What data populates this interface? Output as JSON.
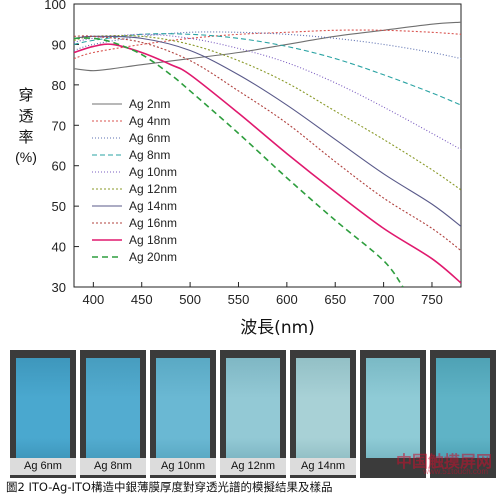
{
  "chart_data": {
    "type": "line",
    "ylabel_chars": [
      "穿",
      "透",
      "率"
    ],
    "ylabel_unit": "(%)",
    "xlabel": "波長(nm)",
    "xlim": [
      380,
      780
    ],
    "ylim": [
      30,
      100
    ],
    "xticks": [
      400,
      450,
      500,
      550,
      600,
      650,
      700,
      750
    ],
    "yticks": [
      30,
      40,
      50,
      60,
      70,
      80,
      90,
      100
    ],
    "legend_position": "center-left",
    "series": [
      {
        "name": "Ag 2nm",
        "color": "#707070",
        "dash": "",
        "width": 1.1,
        "x": [
          380,
          400,
          420,
          450,
          500,
          550,
          600,
          650,
          700,
          750,
          780
        ],
        "y": [
          84,
          83.5,
          84,
          85,
          86.5,
          88,
          90,
          92,
          93.5,
          95,
          95.5
        ]
      },
      {
        "name": "Ag 4nm",
        "color": "#d9534f",
        "dash": "2,2",
        "width": 1.1,
        "x": [
          380,
          400,
          450,
          500,
          550,
          600,
          650,
          700,
          750,
          780
        ],
        "y": [
          86.5,
          88,
          90,
          91.5,
          92.5,
          93,
          93.5,
          93.5,
          93,
          92.5
        ]
      },
      {
        "name": "Ag 6nm",
        "color": "#5b6fb0",
        "dash": "1,2",
        "width": 1.1,
        "x": [
          380,
          400,
          450,
          500,
          550,
          600,
          650,
          700,
          750,
          780
        ],
        "y": [
          88.5,
          90,
          92,
          93,
          93,
          92.5,
          91.5,
          90,
          88,
          86.5
        ]
      },
      {
        "name": "Ag 8nm",
        "color": "#2aa3a3",
        "dash": "5,3",
        "width": 1.1,
        "x": [
          380,
          400,
          450,
          500,
          550,
          600,
          650,
          700,
          750,
          780
        ],
        "y": [
          90,
          91,
          92.5,
          92.5,
          91.5,
          89.5,
          86.5,
          82.5,
          78,
          75
        ]
      },
      {
        "name": "Ag 10nm",
        "color": "#7a5cc0",
        "dash": "1,2",
        "width": 1.1,
        "x": [
          380,
          400,
          450,
          500,
          550,
          600,
          650,
          700,
          750,
          780
        ],
        "y": [
          90.5,
          91.5,
          92.5,
          91.5,
          89,
          85.5,
          80.5,
          74.5,
          68,
          64
        ]
      },
      {
        "name": "Ag 12nm",
        "color": "#8a9a2a",
        "dash": "2,2",
        "width": 1.1,
        "x": [
          380,
          400,
          450,
          500,
          550,
          600,
          650,
          700,
          750,
          780
        ],
        "y": [
          91,
          92,
          92,
          90,
          86,
          80.5,
          73.5,
          66.5,
          59,
          54
        ]
      },
      {
        "name": "Ag 14nm",
        "color": "#5a5a8a",
        "dash": "",
        "width": 1.1,
        "x": [
          380,
          400,
          450,
          500,
          550,
          600,
          650,
          700,
          750,
          780
        ],
        "y": [
          91.5,
          92,
          91.5,
          88.5,
          82.5,
          75,
          66.5,
          58,
          50.5,
          45
        ]
      },
      {
        "name": "Ag 16nm",
        "color": "#b0413e",
        "dash": "2,2",
        "width": 1.1,
        "x": [
          380,
          400,
          450,
          500,
          550,
          600,
          650,
          700,
          750,
          780
        ],
        "y": [
          92,
          92,
          90.5,
          86,
          78.5,
          70.5,
          61,
          52,
          44.5,
          39
        ]
      },
      {
        "name": "Ag 18nm",
        "color": "#e0196e",
        "dash": "",
        "width": 1.6,
        "x": [
          380,
          400,
          420,
          450,
          480,
          500,
          550,
          600,
          650,
          700,
          750,
          780
        ],
        "y": [
          88,
          89.5,
          90,
          88,
          85,
          82.5,
          73,
          63,
          53.5,
          44.5,
          37,
          31
        ]
      },
      {
        "name": "Ag 20nm",
        "color": "#2e9e3e",
        "dash": "6,4",
        "width": 1.6,
        "x": [
          380,
          400,
          420,
          450,
          480,
          500,
          550,
          600,
          650,
          700,
          720
        ],
        "y": [
          91.5,
          91.5,
          90.5,
          87.5,
          82.5,
          78.5,
          68,
          57,
          46.5,
          36.5,
          30
        ]
      }
    ]
  },
  "samples": [
    {
      "label": "Ag 6nm",
      "color": "#4aa8cf",
      "edge": "#3e97bc"
    },
    {
      "label": "Ag 8nm",
      "color": "#53acd0",
      "edge": "#479dbf"
    },
    {
      "label": "Ag 10nm",
      "color": "#6ab8d3",
      "edge": "#5aa9c4"
    },
    {
      "label": "Ag 12nm",
      "color": "#93c9d5",
      "edge": "#7fb7c4"
    },
    {
      "label": "Ag 14nm",
      "color": "#a8d1d6",
      "edge": "#93c0c6"
    },
    {
      "label": "",
      "color": "#8fcbd6",
      "edge": "#7ab9c5"
    },
    {
      "label": "",
      "color": "#5fb3c6",
      "edge": "#4fa2b5"
    }
  ],
  "caption": "圖2  ITO-Ag-ITO構造中銀薄膜厚度對穿透光譜的模擬結果及樣品",
  "watermark": "中国触摸屏网",
  "watermark_sub": "www.51touch.com"
}
